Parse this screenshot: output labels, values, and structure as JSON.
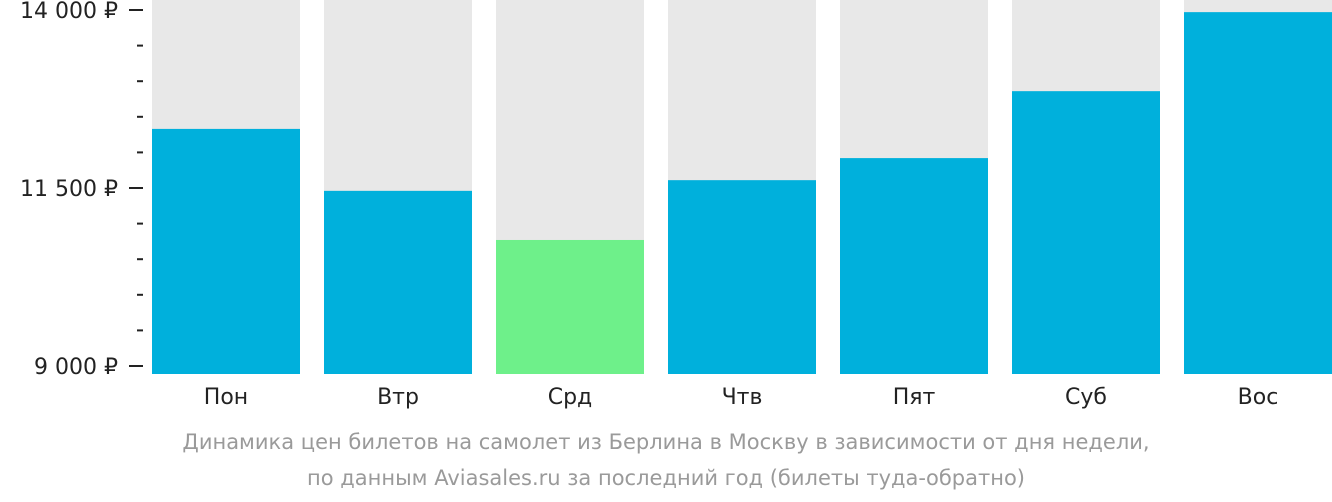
{
  "chart_data": {
    "type": "bar",
    "categories": [
      "Пон",
      "Втр",
      "Срд",
      "Чтв",
      "Пят",
      "Суб",
      "Вос"
    ],
    "values": [
      12330,
      11460,
      10770,
      11610,
      11920,
      12860,
      13970
    ],
    "ylim": [
      9000,
      14000
    ],
    "yticks": [
      {
        "value": 14000,
        "label": "14 000 ₽"
      },
      {
        "value": 11500,
        "label": "11 500 ₽"
      },
      {
        "value": 9000,
        "label": "9 000 ₽"
      }
    ],
    "minor_tick_step": 500,
    "highlight_index": 2,
    "grid": false,
    "colors": {
      "bar": "#00b0dc",
      "highlight": "#6ef08a",
      "background_bar": "#e8e8e8",
      "axis": "#222222"
    }
  },
  "caption": {
    "line1": "Динамика цен билетов на самолет из Берлина в Москву в зависимости от дня недели,",
    "line2": "по данным Aviasales.ru за последний год (билеты туда-обратно)"
  }
}
